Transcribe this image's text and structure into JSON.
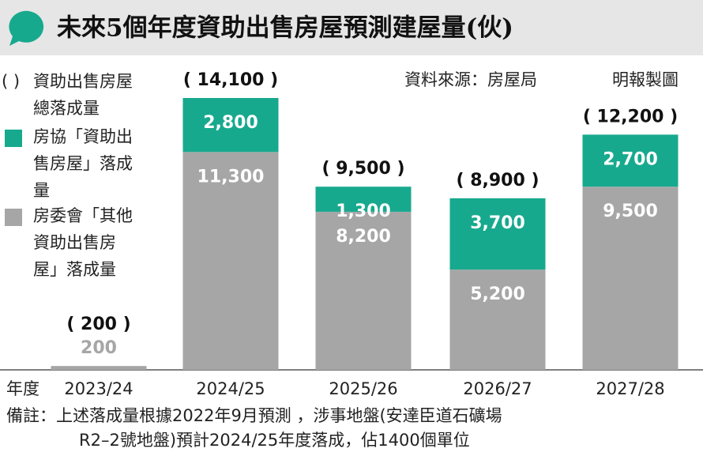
{
  "chart_data": {
    "type": "stacked_bar",
    "title": "未來5個年度資助出售房屋預測建屋量(伙)",
    "source": "資料來源：房屋局",
    "credit": "明報製圖",
    "x_label": "年度",
    "categories": [
      "2023/24",
      "2024/25",
      "2025/26",
      "2026/27",
      "2027/28"
    ],
    "series": [
      {
        "name": "房委會「其他資助出售房屋」落成量",
        "color": "#a6a6a6",
        "values": [
          200,
          11300,
          8200,
          5200,
          9500
        ],
        "value_labels": [
          "200",
          "11,300",
          "8,200",
          "5,200",
          "9,500"
        ]
      },
      {
        "name": "房協「資助出售房屋」落成量",
        "color": "#17a98e",
        "values": [
          null,
          2800,
          1300,
          3700,
          2700
        ],
        "value_labels": [
          null,
          "2,800",
          "1,300",
          "3,700",
          "2,700"
        ]
      }
    ],
    "totals": {
      "name": "資助出售房屋總落成量",
      "symbol": "( )",
      "values": [
        200,
        14100,
        9500,
        8900,
        12200
      ],
      "value_labels": [
        "( 200 )",
        "( 14,100 )",
        "( 9,500 )",
        "( 8,900 )",
        "( 12,200 )"
      ]
    },
    "notes": [
      "備註：上述落成量根據2022年9月預測 ，涉事地盤(安達臣道石礦場",
      "R2–2號地盤)預計2024/25年度落成，佔1400個單位"
    ]
  }
}
